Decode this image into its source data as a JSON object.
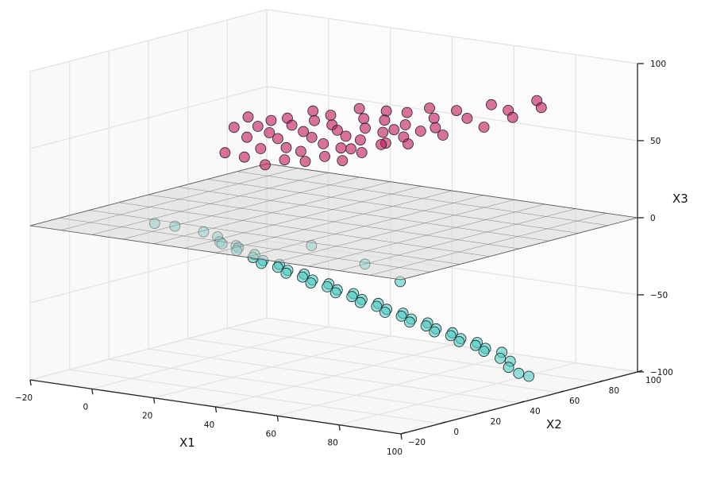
{
  "chart_data": {
    "type": "scatter",
    "projection": "3d",
    "title": "",
    "xlabel": "X1",
    "ylabel": "X2",
    "zlabel": "X3",
    "xlim": [
      -20,
      100
    ],
    "ylim": [
      -20,
      100
    ],
    "zlim": [
      -100,
      100
    ],
    "x_ticks": [
      -20,
      0,
      20,
      40,
      60,
      80,
      100
    ],
    "y_ticks": [
      -20,
      0,
      20,
      40,
      60,
      80,
      100
    ],
    "z_ticks": [
      -100,
      -50,
      0,
      50,
      100
    ],
    "grid": true,
    "legend": "none",
    "separating_plane": {
      "z": 0,
      "x_range": [
        -20,
        100
      ],
      "y_range": [
        -20,
        100
      ],
      "edge_color": "#555555",
      "face_color": "#d8d8d8"
    },
    "series": [
      {
        "color": "#c2185b",
        "points": [
          [
            -14,
            74,
            34
          ],
          [
            -12,
            78,
            40
          ],
          [
            -8,
            60,
            24
          ],
          [
            -6,
            68,
            32
          ],
          [
            -5,
            72,
            38
          ],
          [
            -3,
            62,
            22
          ],
          [
            -2,
            74,
            42
          ],
          [
            0,
            70,
            36
          ],
          [
            1,
            64,
            28
          ],
          [
            2,
            76,
            44
          ],
          [
            4,
            68,
            34
          ],
          [
            5,
            60,
            20
          ],
          [
            6,
            72,
            42
          ],
          [
            8,
            66,
            30
          ],
          [
            9,
            78,
            50
          ],
          [
            10,
            62,
            24
          ],
          [
            11,
            70,
            40
          ],
          [
            12,
            74,
            46
          ],
          [
            14,
            64,
            30
          ],
          [
            15,
            68,
            38
          ],
          [
            16,
            76,
            50
          ],
          [
            18,
            60,
            26
          ],
          [
            19,
            72,
            46
          ],
          [
            20,
            66,
            36
          ],
          [
            22,
            70,
            44
          ],
          [
            23,
            62,
            30
          ],
          [
            24,
            78,
            56
          ],
          [
            26,
            68,
            42
          ],
          [
            27,
            64,
            36
          ],
          [
            28,
            74,
            52
          ],
          [
            30,
            60,
            30
          ],
          [
            31,
            70,
            48
          ],
          [
            32,
            66,
            42
          ],
          [
            34,
            76,
            58
          ],
          [
            35,
            62,
            36
          ],
          [
            36,
            72,
            54
          ],
          [
            38,
            68,
            48
          ],
          [
            40,
            64,
            42
          ],
          [
            42,
            74,
            60
          ],
          [
            44,
            70,
            54
          ],
          [
            46,
            66,
            48
          ],
          [
            48,
            76,
            64
          ],
          [
            50,
            62,
            46
          ],
          [
            52,
            72,
            60
          ],
          [
            55,
            68,
            56
          ],
          [
            58,
            74,
            66
          ],
          [
            60,
            64,
            54
          ],
          [
            64,
            70,
            64
          ],
          [
            68,
            76,
            72
          ],
          [
            72,
            66,
            62
          ],
          [
            76,
            72,
            72
          ],
          [
            80,
            68,
            70
          ],
          [
            84,
            74,
            80
          ],
          [
            88,
            70,
            78
          ],
          [
            20,
            80,
            28
          ],
          [
            30,
            82,
            34
          ],
          [
            40,
            84,
            44
          ],
          [
            48,
            58,
            56
          ]
        ]
      },
      {
        "color": "#4ecdc4",
        "points": [
          [
            -18,
            40,
            -18
          ],
          [
            -14,
            44,
            -20
          ],
          [
            -6,
            46,
            -22
          ],
          [
            -4,
            50,
            -26
          ],
          [
            -2,
            48,
            -28
          ],
          [
            0,
            46,
            -28
          ],
          [
            2,
            50,
            -30
          ],
          [
            4,
            48,
            -30
          ],
          [
            6,
            44,
            -30
          ],
          [
            8,
            50,
            -34
          ],
          [
            10,
            46,
            -34
          ],
          [
            12,
            48,
            -36
          ],
          [
            14,
            44,
            -36
          ],
          [
            16,
            50,
            -38
          ],
          [
            18,
            46,
            -38
          ],
          [
            20,
            48,
            -40
          ],
          [
            22,
            44,
            -40
          ],
          [
            24,
            50,
            -42
          ],
          [
            26,
            46,
            -42
          ],
          [
            28,
            48,
            -44
          ],
          [
            30,
            44,
            -44
          ],
          [
            32,
            50,
            -46
          ],
          [
            34,
            46,
            -46
          ],
          [
            36,
            48,
            -48
          ],
          [
            38,
            44,
            -48
          ],
          [
            40,
            50,
            -50
          ],
          [
            42,
            46,
            -50
          ],
          [
            44,
            48,
            -52
          ],
          [
            46,
            44,
            -52
          ],
          [
            48,
            50,
            -54
          ],
          [
            50,
            46,
            -54
          ],
          [
            52,
            48,
            -56
          ],
          [
            54,
            44,
            -56
          ],
          [
            56,
            50,
            -58
          ],
          [
            58,
            46,
            -58
          ],
          [
            60,
            48,
            -60
          ],
          [
            62,
            44,
            -60
          ],
          [
            64,
            50,
            -62
          ],
          [
            66,
            46,
            -62
          ],
          [
            68,
            48,
            -64
          ],
          [
            70,
            44,
            -64
          ],
          [
            72,
            50,
            -66
          ],
          [
            74,
            46,
            -66
          ],
          [
            76,
            48,
            -68
          ],
          [
            78,
            44,
            -68
          ],
          [
            80,
            50,
            -70
          ],
          [
            82,
            46,
            -70
          ],
          [
            84,
            48,
            -72
          ],
          [
            86,
            44,
            -72
          ],
          [
            88,
            50,
            -74
          ],
          [
            90,
            46,
            -76
          ],
          [
            92,
            48,
            -78
          ],
          [
            94,
            44,
            -80
          ],
          [
            96,
            46,
            -84
          ],
          [
            98,
            48,
            -86
          ],
          [
            20,
            60,
            -28
          ],
          [
            36,
            62,
            -36
          ],
          [
            50,
            58,
            -42
          ]
        ]
      }
    ]
  }
}
